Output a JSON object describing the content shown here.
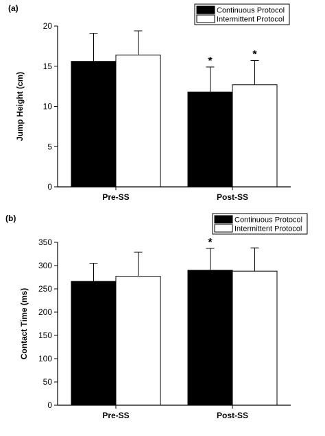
{
  "chart_data": [
    {
      "type": "bar",
      "panel_label": "(a)",
      "categories": [
        "Pre-SS",
        "Post-SS"
      ],
      "ylabel": "Jump Height (cm)",
      "xlabel": "",
      "ylim": [
        0,
        20
      ],
      "yticks": [
        0,
        5,
        10,
        15,
        20
      ],
      "legend_position": "top-right",
      "series": [
        {
          "name": "Continuous Protocol",
          "color": "#000000",
          "values": [
            15.6,
            11.8
          ],
          "errors": [
            3.5,
            3.1
          ]
        },
        {
          "name": "Intermittent Protocol",
          "color": "#ffffff",
          "values": [
            16.4,
            12.7
          ],
          "errors": [
            3.0,
            3.0
          ]
        }
      ],
      "annotations": [
        {
          "text": "*",
          "series": 0,
          "category": 1
        },
        {
          "text": "*",
          "series": 1,
          "category": 1
        }
      ]
    },
    {
      "type": "bar",
      "panel_label": "(b)",
      "categories": [
        "Pre-SS",
        "Post-SS"
      ],
      "ylabel": "Contact Time (ms)",
      "xlabel": "",
      "ylim": [
        0,
        350
      ],
      "yticks": [
        0,
        50,
        100,
        150,
        200,
        250,
        300,
        350
      ],
      "legend_position": "top-right",
      "series": [
        {
          "name": "Continuous Protocol",
          "color": "#000000",
          "values": [
            266,
            290
          ],
          "errors": [
            39,
            47
          ]
        },
        {
          "name": "Intermittent Protocol",
          "color": "#ffffff",
          "values": [
            277,
            288
          ],
          "errors": [
            52,
            50
          ]
        }
      ],
      "annotations": [
        {
          "text": "*",
          "series": 0,
          "category": 1
        }
      ]
    }
  ]
}
